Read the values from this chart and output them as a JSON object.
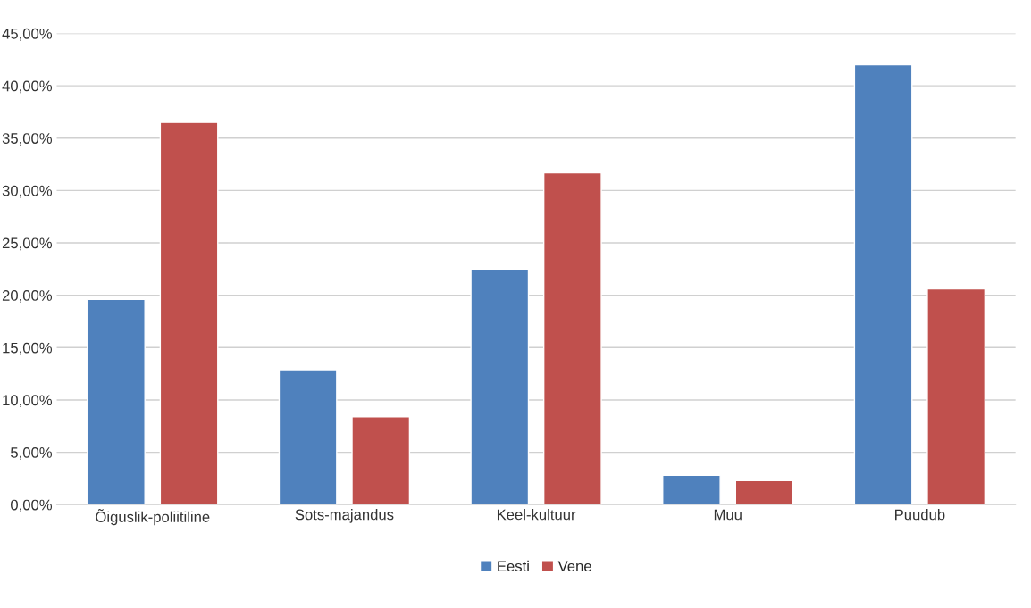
{
  "chart_data": {
    "type": "bar",
    "categories": [
      "Õiguslik-poliitiline",
      "Sots-majandus",
      "Keel-kultuur",
      "Muu",
      "Puudub"
    ],
    "series": [
      {
        "name": "Eesti",
        "color": "#4f81bd",
        "values": [
          19.6,
          12.9,
          22.5,
          2.8,
          42.0
        ]
      },
      {
        "name": "Vene",
        "color": "#c0504d",
        "values": [
          36.5,
          8.4,
          31.7,
          2.3,
          20.6
        ]
      }
    ],
    "ylim": [
      0,
      45
    ],
    "yticks": [
      {
        "value": 0,
        "label": "0,00%"
      },
      {
        "value": 5,
        "label": "5,00%"
      },
      {
        "value": 10,
        "label": "10,00%"
      },
      {
        "value": 15,
        "label": "15,00%"
      },
      {
        "value": 20,
        "label": "20,00%"
      },
      {
        "value": 25,
        "label": "25,00%"
      },
      {
        "value": 30,
        "label": "30,00%"
      },
      {
        "value": 35,
        "label": "35,00%"
      },
      {
        "value": 40,
        "label": "40,00%"
      },
      {
        "value": 45,
        "label": "45,00%"
      }
    ],
    "grid": "y",
    "legend": "bottom"
  }
}
